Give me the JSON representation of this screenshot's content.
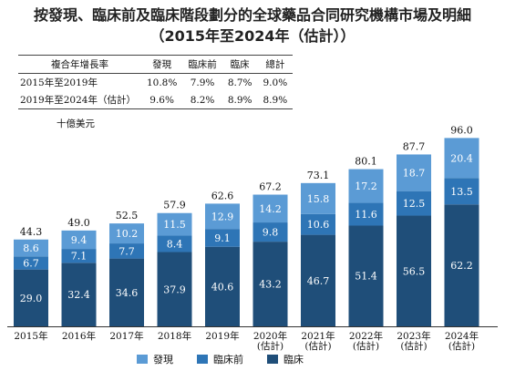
{
  "title": "按發現、臨床前及臨床階段劃分的全球藥品合同研究機構市場及明細",
  "subtitle": "（2015年至2024年（估計））",
  "cagr_table": {
    "headers": [
      "複合年增長率",
      "發現",
      "臨床前",
      "臨床",
      "總計"
    ],
    "rows": [
      [
        "2015年至2019年",
        "10.8%",
        "7.9%",
        "8.7%",
        "9.0%"
      ],
      [
        "2019年至2024年（估計）",
        "9.6%",
        "8.2%",
        "8.9%",
        "8.9%"
      ]
    ]
  },
  "unit_label": "十億美元",
  "colors": {
    "discovery": "#5b9bd5",
    "preclinical": "#2e75b6",
    "clinical": "#1f4e79"
  },
  "chart_data": {
    "type": "bar",
    "stacked": true,
    "categories": [
      "2015年",
      "2016年",
      "2017年",
      "2018年",
      "2019年",
      "2020年\n(估計)",
      "2021年\n(估計)",
      "2022年\n(估計)",
      "2023年\n(估計)",
      "2024年\n(估計)"
    ],
    "series": [
      {
        "name": "臨床",
        "values": [
          29.0,
          32.4,
          34.6,
          37.9,
          40.6,
          43.2,
          46.7,
          51.4,
          56.5,
          62.2
        ]
      },
      {
        "name": "臨床前",
        "values": [
          6.7,
          7.1,
          7.7,
          8.4,
          9.1,
          9.8,
          10.6,
          11.6,
          12.5,
          13.5
        ]
      },
      {
        "name": "發現",
        "values": [
          8.6,
          9.4,
          10.2,
          11.5,
          12.9,
          14.2,
          15.8,
          17.2,
          18.7,
          20.4
        ]
      }
    ],
    "totals": [
      44.3,
      49.0,
      52.5,
      57.9,
      62.6,
      67.2,
      73.1,
      80.1,
      87.7,
      96.0
    ],
    "legend_order": [
      "發現",
      "臨床前",
      "臨床"
    ],
    "legend_position": "bottom"
  }
}
